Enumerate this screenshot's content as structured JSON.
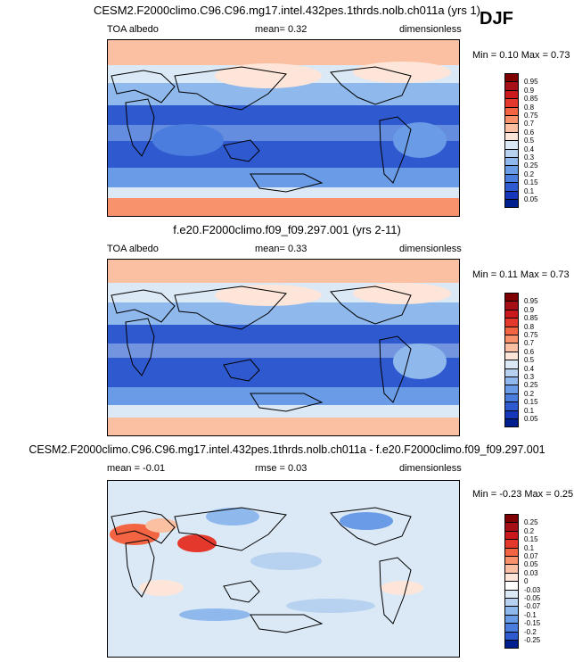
{
  "season": "DJF",
  "panels": [
    {
      "title": "CESM2.F2000climo.C96.C96.mg17.intel.432pes.1thrds.nolb.ch011a (yrs 1)",
      "left_label": "TOA albedo",
      "center_label": "mean=   0.32",
      "right_label": "dimensionless",
      "minmax": "Min =  0.10 Max =   0.73",
      "levels": [
        "0.95",
        "0.9",
        "0.85",
        "0.8",
        "0.75",
        "0.7",
        "0.6",
        "0.5",
        "0.4",
        "0.3",
        "0.25",
        "0.2",
        "0.15",
        "0.1",
        "0.05"
      ],
      "colors": [
        "#7f0000",
        "#a50f15",
        "#cb181d",
        "#e5382d",
        "#f26442",
        "#f7926c",
        "#fbbfa2",
        "#fde5d9",
        "#dbe9f6",
        "#b7d1f0",
        "#8fb8ec",
        "#6a9be6",
        "#4a7ddd",
        "#2f59cf",
        "#1636bc",
        "#001f8f"
      ],
      "colors_order_note": "top to bottom"
    },
    {
      "title": "f.e20.F2000climo.f09_f09.297.001 (yrs 2-11)",
      "left_label": "TOA albedo",
      "center_label": "mean=   0.33",
      "right_label": "dimensionless",
      "minmax": "Min =  0.11 Max =   0.73",
      "levels": [
        "0.95",
        "0.9",
        "0.85",
        "0.8",
        "0.75",
        "0.7",
        "0.6",
        "0.5",
        "0.4",
        "0.3",
        "0.25",
        "0.2",
        "0.15",
        "0.1",
        "0.05"
      ],
      "colors": [
        "#7f0000",
        "#a50f15",
        "#cb181d",
        "#e5382d",
        "#f26442",
        "#f7926c",
        "#fbbfa2",
        "#fde5d9",
        "#dbe9f6",
        "#b7d1f0",
        "#8fb8ec",
        "#6a9be6",
        "#4a7ddd",
        "#2f59cf",
        "#1636bc",
        "#001f8f"
      ]
    },
    {
      "title": "CESM2.F2000climo.C96.C96.mg17.intel.432pes.1thrds.nolb.ch011a - f.e20.F2000climo.f09_f09.297.001",
      "left_label": "mean =  -0.01",
      "center_label": "rmse =   0.03",
      "right_label": "dimensionless",
      "minmax": "Min =  -0.23 Max =   0.25",
      "levels": [
        "0.25",
        "0.2",
        "0.15",
        "0.1",
        "0.07",
        "0.05",
        "0.03",
        "0",
        "-0.03",
        "-0.05",
        "-0.07",
        "-0.1",
        "-0.15",
        "-0.2",
        "-0.25"
      ],
      "colors": [
        "#7f0000",
        "#a50f15",
        "#cb181d",
        "#e5382d",
        "#f26442",
        "#f7926c",
        "#fbbfa2",
        "#fde5d9",
        "#ffffff",
        "#dbe9f6",
        "#b7d1f0",
        "#8fb8ec",
        "#6a9be6",
        "#4a7ddd",
        "#2f59cf",
        "#001f8f"
      ]
    }
  ]
}
